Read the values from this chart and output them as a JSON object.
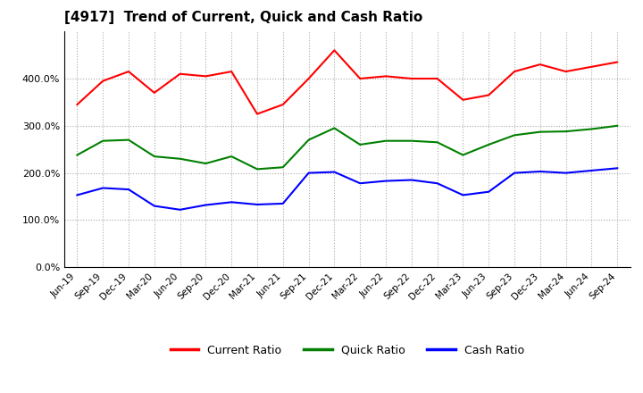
{
  "title": "[4917]  Trend of Current, Quick and Cash Ratio",
  "x_labels": [
    "Jun-19",
    "Sep-19",
    "Dec-19",
    "Mar-20",
    "Jun-20",
    "Sep-20",
    "Dec-20",
    "Mar-21",
    "Jun-21",
    "Sep-21",
    "Dec-21",
    "Mar-22",
    "Jun-22",
    "Sep-22",
    "Dec-22",
    "Mar-23",
    "Jun-23",
    "Sep-23",
    "Dec-23",
    "Mar-24",
    "Jun-24",
    "Sep-24"
  ],
  "current_ratio": [
    345,
    395,
    415,
    370,
    410,
    405,
    415,
    325,
    345,
    400,
    460,
    400,
    405,
    400,
    400,
    355,
    365,
    415,
    430,
    415,
    425,
    435
  ],
  "quick_ratio": [
    238,
    268,
    270,
    235,
    230,
    220,
    235,
    208,
    212,
    270,
    295,
    260,
    268,
    268,
    265,
    238,
    260,
    280,
    287,
    288,
    293,
    300
  ],
  "cash_ratio": [
    153,
    168,
    165,
    130,
    122,
    132,
    138,
    133,
    135,
    200,
    202,
    178,
    183,
    185,
    178,
    153,
    160,
    200,
    203,
    200,
    205,
    210
  ],
  "ylim": [
    0,
    500
  ],
  "yticks": [
    0,
    100,
    200,
    300,
    400
  ],
  "colors": {
    "current": "#ff0000",
    "quick": "#008000",
    "cash": "#0000ff"
  },
  "background_color": "#ffffff",
  "plot_bg_color": "#ffffff",
  "grid_color": "#aaaaaa",
  "legend_labels": [
    "Current Ratio",
    "Quick Ratio",
    "Cash Ratio"
  ]
}
